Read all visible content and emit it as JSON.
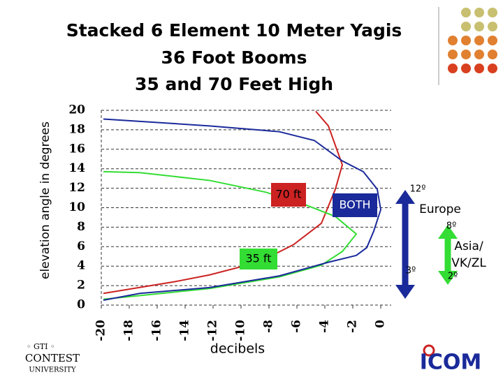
{
  "chart_data": {
    "type": "line",
    "title": "Stacked 6 Element 10 Meter Yagis",
    "subtitle": [
      "36 Foot Booms",
      "35 and 70 Feet High"
    ],
    "x_label": "decibels",
    "y_label": "elevation angle in degrees",
    "xlim": [
      -20,
      0
    ],
    "ylim": [
      0,
      20
    ],
    "xticks": [
      -20,
      -18,
      -16,
      -14,
      -12,
      -10,
      -8,
      -6,
      -4,
      -2,
      0
    ],
    "yticks": [
      0,
      2,
      4,
      6,
      8,
      10,
      12,
      14,
      16,
      18,
      20
    ],
    "grid": true,
    "series": [
      {
        "name": "70 ft",
        "color": "#cc2222",
        "x": [
          -19.85,
          -14.75,
          -12.25,
          -8.75,
          -6.25,
          -4.25,
          -3.25,
          -2.75,
          -3.75,
          -4.65
        ],
        "values": [
          1.2,
          2.4,
          3.1,
          4.4,
          6.2,
          8.4,
          11.9,
          14.4,
          18.4,
          19.9
        ]
      },
      {
        "name": "35 ft",
        "color": "#33dd33",
        "x": [
          -19.85,
          -12.25,
          -7.25,
          -4.25,
          -2.75,
          -1.75,
          -3.25,
          -5.75,
          -8.25,
          -12.25,
          -17.25,
          -19.85
        ],
        "values": [
          0.6,
          1.7,
          2.9,
          4.1,
          5.5,
          7.3,
          9.1,
          10.5,
          11.6,
          12.8,
          13.6,
          13.7
        ]
      },
      {
        "name": "BOTH",
        "color": "#1a2a9a",
        "x": [
          -19.85,
          -17.25,
          -12.25,
          -7.25,
          -3.75,
          -1.75,
          -1,
          -0.5,
          0,
          -0.25,
          -1.25,
          -2.75,
          -4.75,
          -7.25,
          -12.25,
          -19.85
        ],
        "values": [
          0.5,
          1.2,
          1.8,
          3,
          4.4,
          5.1,
          5.9,
          7.6,
          9.8,
          11.9,
          13.7,
          14.8,
          16.9,
          17.8,
          18.4,
          19.1
        ]
      }
    ],
    "annotations": [
      "12º",
      "Europe",
      "8º",
      "3º",
      "Asia/",
      "VK/ZL",
      "2º"
    ]
  },
  "footer": {
    "left_logo": [
      "CONTEST",
      "UNIVERSITY"
    ],
    "right_logo": "ICOM"
  }
}
